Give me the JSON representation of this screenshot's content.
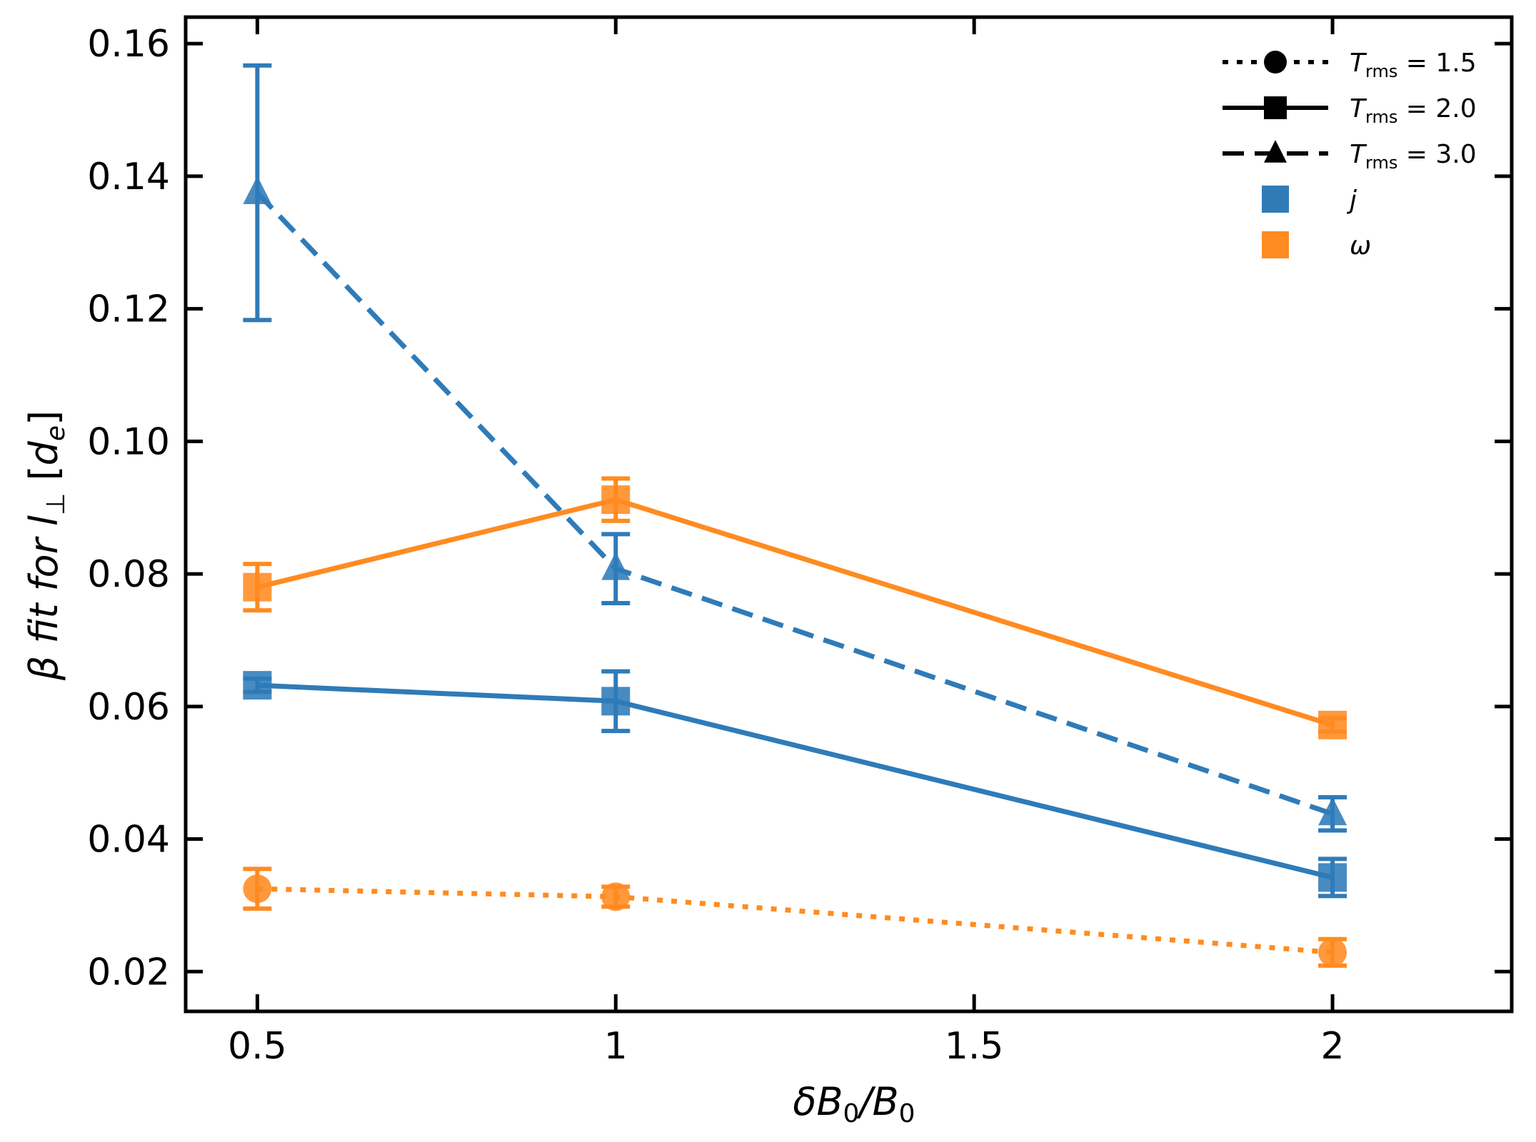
{
  "chart_data": {
    "type": "line",
    "title": "",
    "xlabel": {
      "text": "δB",
      "sub1": "0",
      "mid": "/B",
      "sub2": "0"
    },
    "ylabel": {
      "prefix": "β fit for ",
      "var": "l",
      "sub": "⊥",
      "open": " [",
      "unit": "d",
      "unit_sub": "e",
      "close": "]"
    },
    "xlim": [
      0.4,
      2.25
    ],
    "ylim": [
      0.014,
      0.164
    ],
    "x_ticks": [
      0.5,
      1,
      1.5,
      2
    ],
    "x_tick_labels": [
      "0.5",
      "1",
      "1.5",
      "2"
    ],
    "y_ticks": [
      0.02,
      0.04,
      0.06,
      0.08,
      0.1,
      0.12,
      0.14,
      0.16
    ],
    "y_tick_labels": [
      "0.02",
      "0.04",
      "0.06",
      "0.08",
      "0.10",
      "0.12",
      "0.14",
      "0.16"
    ],
    "colors": {
      "j": "#2f7bb8",
      "omega": "#ff8b21"
    },
    "series": [
      {
        "name": "j, T_rms = 3.0",
        "quantity": "j",
        "marker": "triangle",
        "linestyle": "dashed",
        "x": [
          0.5,
          1,
          2
        ],
        "y": [
          0.1375,
          0.0808,
          0.0438
        ],
        "err": [
          0.0192,
          0.0052,
          0.0025
        ]
      },
      {
        "name": "ω, T_rms = 2.0",
        "quantity": "omega",
        "marker": "square",
        "linestyle": "solid",
        "x": [
          0.5,
          1,
          2
        ],
        "y": [
          0.078,
          0.0912,
          0.0572
        ],
        "err": [
          0.0035,
          0.0032,
          0.001
        ]
      },
      {
        "name": "j, T_rms = 2.0",
        "quantity": "j",
        "marker": "square",
        "linestyle": "solid",
        "x": [
          0.5,
          1,
          2
        ],
        "y": [
          0.0632,
          0.0608,
          0.0342
        ],
        "err": [
          0.001,
          0.0045,
          0.0028
        ]
      },
      {
        "name": "ω, T_rms = 1.5",
        "quantity": "omega",
        "marker": "circle",
        "linestyle": "dotted",
        "x": [
          0.5,
          1,
          2
        ],
        "y": [
          0.0325,
          0.0313,
          0.0229
        ],
        "err": [
          0.003,
          0.0015,
          0.002
        ]
      }
    ],
    "legend": {
      "position": "top-right",
      "entries": [
        {
          "kind": "style",
          "marker": "circle",
          "linestyle": "dotted",
          "label_var": "T",
          "label_sub": "rms",
          "label_rest": " = 1.5"
        },
        {
          "kind": "style",
          "marker": "square",
          "linestyle": "solid",
          "label_var": "T",
          "label_sub": "rms",
          "label_rest": " = 2.0"
        },
        {
          "kind": "style",
          "marker": "triangle",
          "linestyle": "dashed",
          "label_var": "T",
          "label_sub": "rms",
          "label_rest": " = 3.0"
        },
        {
          "kind": "color",
          "quantity": "j",
          "label": "j"
        },
        {
          "kind": "color",
          "quantity": "omega",
          "label": "ω"
        }
      ]
    }
  }
}
